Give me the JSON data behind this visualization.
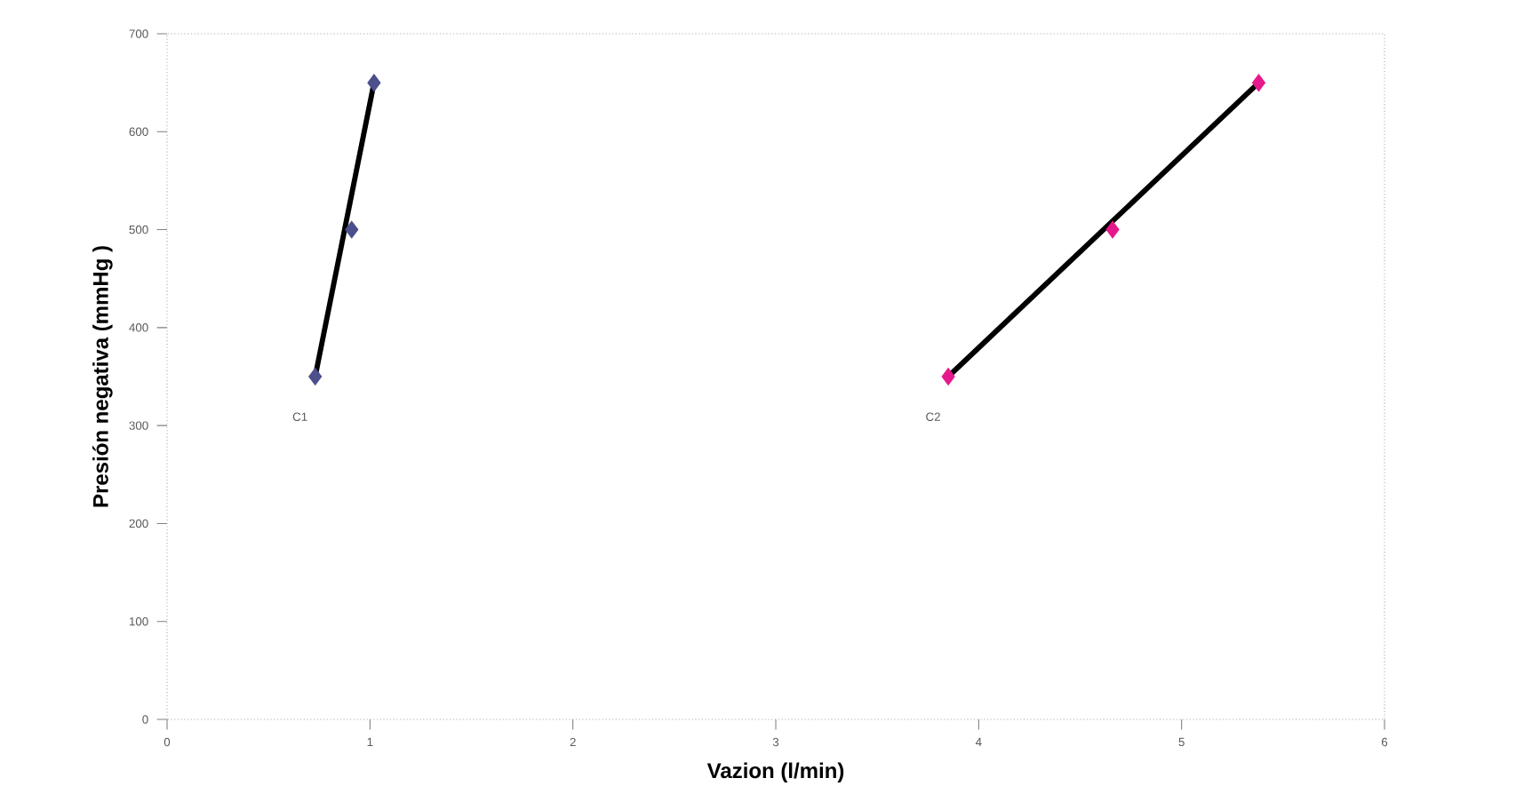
{
  "chart_data": {
    "type": "scatter",
    "xlabel": "Vazion (l/min)",
    "ylabel": "Presión negativa (mmHg )",
    "xlim": [
      0,
      6
    ],
    "ylim": [
      0,
      700
    ],
    "xticks": [
      0,
      1,
      2,
      3,
      4,
      5,
      6
    ],
    "yticks": [
      0,
      100,
      200,
      300,
      400,
      500,
      600,
      700
    ],
    "grid": false,
    "marker": "diamond",
    "series": [
      {
        "type": "line",
        "color": "#000000",
        "x": [
          0.73,
          1.02
        ],
        "values": [
          350,
          650
        ],
        "marker": "none",
        "line_style": "solid"
      },
      {
        "type": "line",
        "color": "#000000",
        "x": [
          3.85,
          5.38
        ],
        "values": [
          350,
          650
        ],
        "marker": "none",
        "line_style": "solid"
      },
      {
        "name": "C1",
        "color": "#4b4f8c",
        "x": [
          0.73,
          0.91,
          1.02
        ],
        "values": [
          350,
          500,
          650
        ]
      },
      {
        "name": "C2",
        "color": "#e6198c",
        "x": [
          3.85,
          4.66,
          5.38
        ],
        "values": [
          350,
          500,
          650
        ]
      }
    ]
  }
}
